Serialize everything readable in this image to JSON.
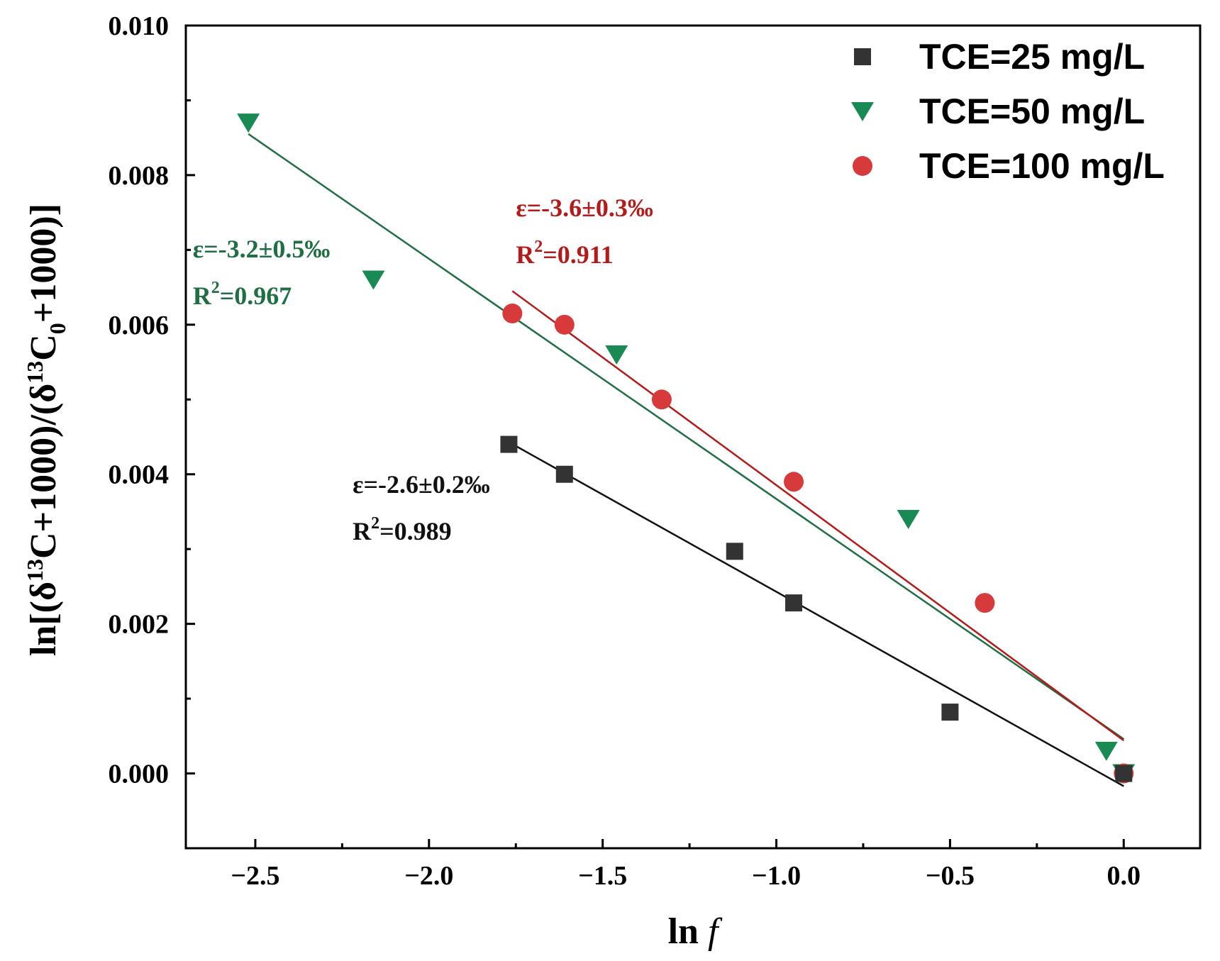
{
  "chart_data": {
    "type": "scatter",
    "xlabel_main": "ln",
    "xlabel_var": "f",
    "ylabel_parts": [
      "ln[(δ",
      "13",
      "C+1000)/(δ",
      "13",
      "C",
      "0",
      "+1000)]"
    ],
    "xlim": [
      -2.7,
      0.22
    ],
    "ylim": [
      -0.001,
      0.01
    ],
    "xticks": [
      -2.5,
      -2.0,
      -1.5,
      -1.0,
      -0.5,
      0.0
    ],
    "xtick_labels": [
      "−2.5",
      "−2.0",
      "−1.5",
      "−1.0",
      "−0.5",
      "0.0"
    ],
    "yticks": [
      0.0,
      0.002,
      0.004,
      0.006,
      0.008,
      0.01
    ],
    "ytick_labels": [
      "0.000",
      "0.002",
      "0.004",
      "0.006",
      "0.008",
      "0.010"
    ],
    "legend_position": "top-right",
    "series": [
      {
        "name": "TCE=25 mg/L",
        "marker": "square",
        "color": "#333333",
        "line_color": "#111111",
        "points": [
          [
            -1.77,
            0.0044
          ],
          [
            -1.61,
            0.004
          ],
          [
            -1.12,
            0.00297
          ],
          [
            -0.95,
            0.00228
          ],
          [
            -0.5,
            0.00082
          ],
          [
            0.0,
            0.0
          ]
        ],
        "fit": [
          [
            -1.77,
            0.00443
          ],
          [
            0.0,
            -0.00017
          ]
        ],
        "annotation": {
          "eps": "ε=-2.6±0.2‰",
          "r2_prefix": "R",
          "r2_sup": "2",
          "r2_value": "=0.989",
          "anchor": [
            -2.22,
            0.00375
          ]
        }
      },
      {
        "name": "TCE=50 mg/L",
        "marker": "triangle-down",
        "color": "#1a8a55",
        "line_color": "#1f6e44",
        "points": [
          [
            -2.52,
            0.0087
          ],
          [
            -2.16,
            0.0066
          ],
          [
            -1.46,
            0.0056
          ],
          [
            -0.62,
            0.0034
          ],
          [
            -0.05,
            0.0003
          ],
          [
            0.0,
            0.0
          ]
        ],
        "fit": [
          [
            -2.52,
            0.00855
          ],
          [
            0.0,
            0.00046
          ]
        ],
        "annotation": {
          "eps": "ε=-3.2±0.5‰",
          "r2_prefix": "R",
          "r2_sup": "2",
          "r2_value": "=0.967",
          "anchor": [
            -2.68,
            0.0069
          ]
        }
      },
      {
        "name": "TCE=100 mg/L",
        "marker": "circle",
        "color": "#d63a3a",
        "line_color": "#b51a1a",
        "points": [
          [
            -1.76,
            0.00615
          ],
          [
            -1.61,
            0.006
          ],
          [
            -1.33,
            0.005
          ],
          [
            -0.95,
            0.0039
          ],
          [
            -0.4,
            0.00228
          ],
          [
            0.0,
            0.0
          ]
        ],
        "fit": [
          [
            -1.76,
            0.00645
          ],
          [
            0.0,
            0.00044
          ]
        ],
        "annotation": {
          "eps": "ε=-3.6±0.3‰",
          "r2_prefix": "R",
          "r2_sup": "2",
          "r2_value": "=0.911",
          "anchor": [
            -1.75,
            0.00745
          ]
        }
      }
    ]
  }
}
